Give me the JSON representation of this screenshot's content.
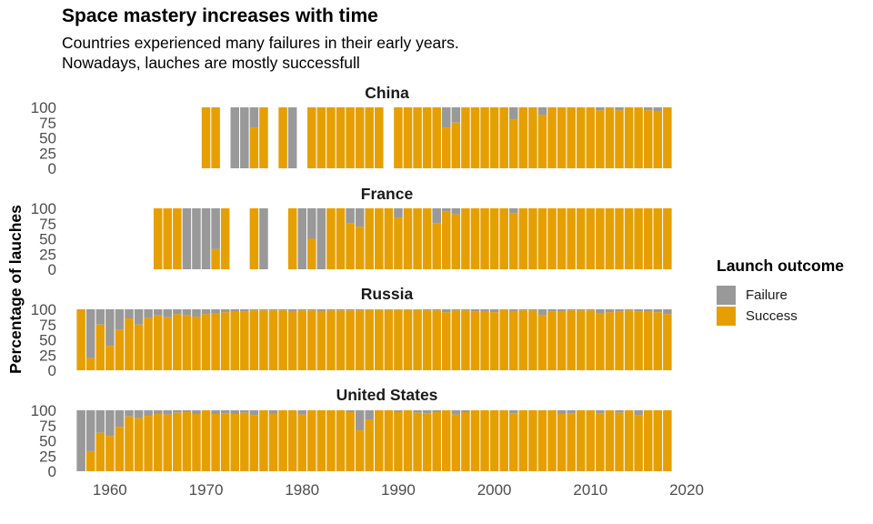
{
  "title": "Space mastery increases with time",
  "subtitle_line1": "Countries experienced many failures in their early years.",
  "subtitle_line2": "Nowadays, lauches are mostly successfull",
  "legend": {
    "title": "Launch outcome",
    "items": [
      {
        "label": "Failure",
        "color": "#999999"
      },
      {
        "label": "Success",
        "color": "#E69F00"
      }
    ]
  },
  "chart_data": {
    "type": "bar",
    "stacked": true,
    "title": "Space mastery increases with time",
    "ylabel": "Percentage of lauches",
    "xlabel": "",
    "xlim": [
      1955,
      2020
    ],
    "ylim": [
      0,
      100
    ],
    "x_ticks": [
      1960,
      1970,
      1980,
      1990,
      2000,
      2010,
      2020
    ],
    "y_ticks": [
      0,
      25,
      50,
      75,
      100
    ],
    "series_names": [
      "Failure",
      "Success"
    ],
    "colors": {
      "Failure": "#999999",
      "Success": "#E69F00"
    },
    "panels": [
      {
        "name": "China",
        "years": [
          1970,
          1971,
          1973,
          1974,
          1975,
          1976,
          1978,
          1979,
          1981,
          1982,
          1983,
          1984,
          1985,
          1986,
          1987,
          1988,
          1990,
          1991,
          1992,
          1993,
          1994,
          1995,
          1996,
          1997,
          1998,
          1999,
          2000,
          2001,
          2002,
          2003,
          2004,
          2005,
          2006,
          2007,
          2008,
          2009,
          2010,
          2011,
          2012,
          2013,
          2014,
          2015,
          2016,
          2017,
          2018
        ],
        "success": [
          100,
          100,
          0,
          0,
          67,
          100,
          100,
          0,
          100,
          100,
          100,
          100,
          100,
          100,
          100,
          100,
          100,
          100,
          100,
          100,
          100,
          67,
          75,
          100,
          100,
          100,
          100,
          100,
          80,
          100,
          100,
          88,
          100,
          100,
          100,
          100,
          100,
          95,
          100,
          95,
          100,
          100,
          95,
          94,
          100
        ]
      },
      {
        "name": "France",
        "years": [
          1965,
          1966,
          1967,
          1968,
          1969,
          1970,
          1971,
          1972,
          1975,
          1976,
          1979,
          1980,
          1981,
          1982,
          1983,
          1984,
          1985,
          1986,
          1987,
          1988,
          1989,
          1990,
          1991,
          1992,
          1993,
          1994,
          1995,
          1996,
          1997,
          1998,
          1999,
          2000,
          2001,
          2002,
          2003,
          2004,
          2005,
          2006,
          2007,
          2008,
          2009,
          2010,
          2011,
          2012,
          2013,
          2014,
          2015,
          2016,
          2017,
          2018
        ],
        "success": [
          100,
          100,
          100,
          0,
          0,
          0,
          33,
          100,
          100,
          0,
          100,
          0,
          50,
          0,
          100,
          100,
          75,
          70,
          100,
          100,
          100,
          85,
          100,
          100,
          100,
          75,
          95,
          90,
          100,
          100,
          100,
          100,
          100,
          92,
          100,
          100,
          100,
          100,
          100,
          100,
          100,
          100,
          100,
          100,
          100,
          100,
          100,
          100,
          100,
          100
        ]
      },
      {
        "name": "Russia",
        "years": [
          1957,
          1958,
          1959,
          1960,
          1961,
          1962,
          1963,
          1964,
          1965,
          1966,
          1967,
          1968,
          1969,
          1970,
          1971,
          1972,
          1973,
          1974,
          1975,
          1976,
          1977,
          1978,
          1979,
          1980,
          1981,
          1982,
          1983,
          1984,
          1985,
          1986,
          1987,
          1988,
          1989,
          1990,
          1991,
          1992,
          1993,
          1994,
          1995,
          1996,
          1997,
          1998,
          1999,
          2000,
          2001,
          2002,
          2003,
          2004,
          2005,
          2006,
          2007,
          2008,
          2009,
          2010,
          2011,
          2012,
          2013,
          2014,
          2015,
          2016,
          2017,
          2018
        ],
        "success": [
          100,
          20,
          75,
          40,
          67,
          85,
          75,
          86,
          90,
          87,
          92,
          90,
          88,
          92,
          94,
          95,
          97,
          96,
          98,
          98,
          98,
          98,
          97,
          98,
          98,
          97,
          98,
          98,
          98,
          98,
          99,
          99,
          99,
          99,
          99,
          99,
          98,
          98,
          95,
          98,
          98,
          96,
          97,
          95,
          100,
          97,
          98,
          98,
          91,
          96,
          97,
          98,
          98,
          98,
          94,
          95,
          96,
          98,
          96,
          97,
          95,
          92
        ]
      },
      {
        "name": "United States",
        "years": [
          1957,
          1958,
          1959,
          1960,
          1961,
          1962,
          1963,
          1964,
          1965,
          1966,
          1967,
          1968,
          1969,
          1970,
          1971,
          1972,
          1973,
          1974,
          1975,
          1976,
          1977,
          1978,
          1979,
          1980,
          1981,
          1982,
          1983,
          1984,
          1985,
          1986,
          1987,
          1988,
          1989,
          1990,
          1991,
          1992,
          1993,
          1994,
          1995,
          1996,
          1997,
          1998,
          1999,
          2000,
          2001,
          2002,
          2003,
          2004,
          2005,
          2006,
          2007,
          2008,
          2009,
          2010,
          2011,
          2012,
          2013,
          2014,
          2015,
          2016,
          2017,
          2018
        ],
        "success": [
          0,
          33,
          63,
          58,
          73,
          90,
          87,
          91,
          94,
          93,
          96,
          97,
          94,
          100,
          94,
          95,
          94,
          96,
          92,
          100,
          94,
          100,
          100,
          93,
          100,
          100,
          100,
          100,
          97,
          67,
          85,
          100,
          100,
          97,
          100,
          96,
          95,
          97,
          100,
          93,
          97,
          100,
          100,
          100,
          100,
          95,
          100,
          100,
          100,
          100,
          94,
          95,
          100,
          100,
          95,
          100,
          96,
          100,
          92,
          100,
          100,
          100
        ]
      }
    ]
  }
}
